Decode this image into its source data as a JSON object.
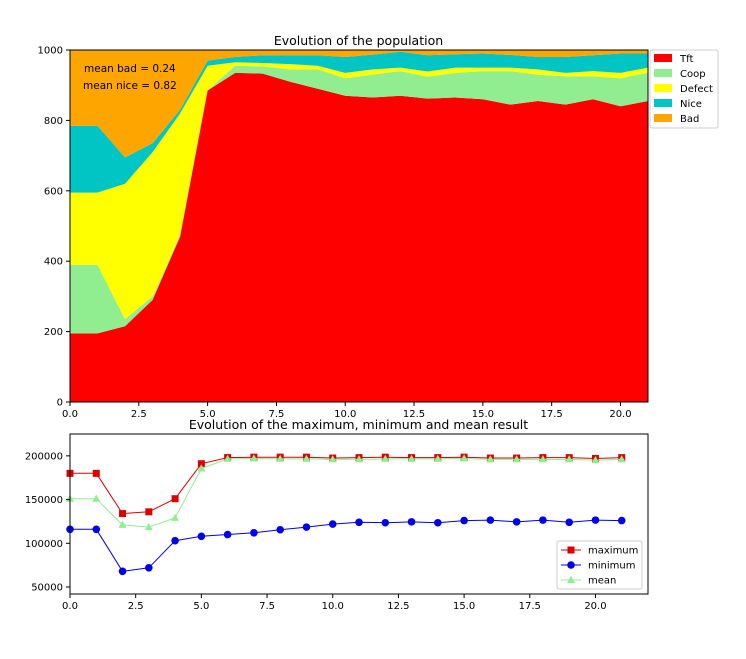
{
  "chart_data": [
    {
      "type": "area",
      "stacked": true,
      "title": "Evolution of the population",
      "xlabel": "",
      "ylabel": "",
      "xlim": [
        0,
        21
      ],
      "ylim": [
        0,
        1000
      ],
      "xticks": [
        "0.0",
        "2.5",
        "5.0",
        "7.5",
        "10.0",
        "12.5",
        "15.0",
        "17.5",
        "20.0"
      ],
      "yticks": [
        "0",
        "200",
        "400",
        "600",
        "800",
        "1000"
      ],
      "x": [
        0,
        1,
        2,
        3,
        4,
        5,
        6,
        7,
        8,
        9,
        10,
        11,
        12,
        13,
        14,
        15,
        16,
        17,
        18,
        19,
        20,
        21
      ],
      "series": [
        {
          "name": "Tft",
          "color": "#ff0000",
          "values": [
            195,
            195,
            215,
            290,
            470,
            885,
            935,
            933,
            910,
            890,
            870,
            865,
            870,
            862,
            865,
            860,
            845,
            855,
            845,
            860,
            840,
            855
          ]
        },
        {
          "name": "Coop",
          "color": "#90ee90",
          "values": [
            195,
            195,
            20,
            10,
            5,
            0,
            20,
            20,
            35,
            55,
            50,
            65,
            70,
            62,
            70,
            80,
            95,
            75,
            80,
            65,
            80,
            80
          ]
        },
        {
          "name": "Defect",
          "color": "#ffff00",
          "values": [
            205,
            205,
            385,
            410,
            345,
            70,
            10,
            10,
            15,
            10,
            15,
            15,
            10,
            15,
            15,
            10,
            10,
            15,
            10,
            15,
            15,
            15
          ]
        },
        {
          "name": "Nice",
          "color": "#00c5c5",
          "values": [
            190,
            190,
            75,
            25,
            10,
            15,
            15,
            22,
            25,
            30,
            45,
            42,
            45,
            46,
            38,
            40,
            36,
            35,
            45,
            45,
            55,
            40
          ]
        },
        {
          "name": "Bad",
          "color": "#ffa500",
          "values": [
            215,
            215,
            305,
            265,
            170,
            30,
            20,
            15,
            15,
            15,
            20,
            13,
            5,
            15,
            12,
            10,
            14,
            20,
            20,
            15,
            10,
            10
          ]
        }
      ],
      "annotations": [
        "mean bad = 0.24",
        "mean nice = 0.82"
      ],
      "legend": "outside-right"
    },
    {
      "type": "line",
      "title": "Evolution of the maximum, minimum and mean result",
      "xlabel": "",
      "ylabel": "",
      "xlim": [
        0,
        22
      ],
      "ylim": [
        42000,
        225000
      ],
      "xticks": [
        "0.0",
        "2.5",
        "5.0",
        "7.5",
        "10.0",
        "12.5",
        "15.0",
        "17.5",
        "20.0"
      ],
      "yticks": [
        "50000",
        "100000",
        "150000",
        "200000"
      ],
      "x": [
        0,
        1,
        2,
        3,
        4,
        5,
        6,
        7,
        8,
        9,
        10,
        11,
        12,
        13,
        14,
        15,
        16,
        17,
        18,
        19,
        20,
        21
      ],
      "series": [
        {
          "name": "maximum",
          "color": "#dd0000",
          "marker": "square",
          "values": [
            180000,
            180000,
            134000,
            136000,
            151000,
            191000,
            198000,
            198500,
            198500,
            198500,
            197500,
            198000,
            198500,
            198000,
            198000,
            198500,
            197500,
            197500,
            198000,
            198000,
            197000,
            198000
          ]
        },
        {
          "name": "minimum",
          "color": "#0000ee",
          "marker": "circle",
          "values": [
            116000,
            116000,
            68000,
            72000,
            103000,
            108000,
            110000,
            112000,
            115500,
            118500,
            122000,
            124000,
            123500,
            124500,
            123500,
            126000,
            126500,
            124500,
            126500,
            124000,
            126500,
            126000
          ]
        },
        {
          "name": "mean",
          "color": "#90ee90",
          "marker": "triangle",
          "values": [
            151000,
            151000,
            121000,
            118500,
            129000,
            185500,
            196500,
            197000,
            196500,
            196500,
            196000,
            196000,
            196500,
            196500,
            196500,
            197000,
            196000,
            196000,
            196000,
            196000,
            195000,
            196000
          ]
        }
      ],
      "legend": "lower-right"
    }
  ]
}
